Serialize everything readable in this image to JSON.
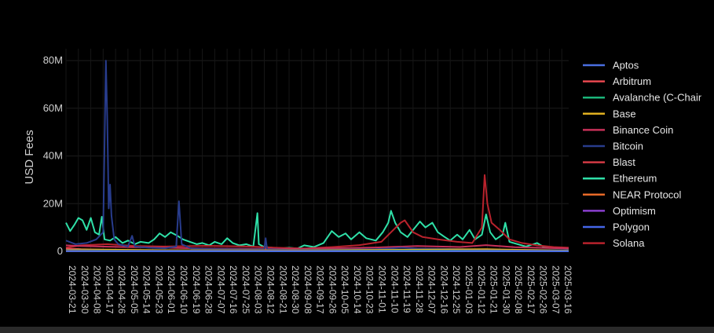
{
  "chart_data": {
    "type": "line",
    "title": "",
    "xlabel": "",
    "ylabel": "USD Fees",
    "ylim": [
      0,
      85000000
    ],
    "yticks": [
      {
        "value": 0,
        "label": "0"
      },
      {
        "value": 20000000,
        "label": "20M"
      },
      {
        "value": 40000000,
        "label": "40M"
      },
      {
        "value": 60000000,
        "label": "60M"
      },
      {
        "value": 80000000,
        "label": "80M"
      }
    ],
    "x_start": "2024-03-21",
    "x_end": "2025-03-21",
    "xtick_labels": [
      "2024-03-21",
      "2024-03-30",
      "2024-04-08",
      "2024-04-17",
      "2024-04-26",
      "2024-05-05",
      "2024-05-14",
      "2024-05-23",
      "2024-06-01",
      "2024-06-10",
      "2024-06-19",
      "2024-06-28",
      "2024-07-07",
      "2024-07-16",
      "2024-07-25",
      "2024-08-03",
      "2024-08-12",
      "2024-08-21",
      "2024-08-30",
      "2024-09-08",
      "2024-09-17",
      "2024-09-26",
      "2024-10-05",
      "2024-10-14",
      "2024-10-23",
      "2024-11-01",
      "2024-11-10",
      "2024-11-19",
      "2024-11-28",
      "2024-12-07",
      "2024-12-16",
      "2024-12-25",
      "2025-01-03",
      "2025-01-12",
      "2025-01-21",
      "2025-01-30",
      "2025-02-08",
      "2025-02-17",
      "2025-02-26",
      "2025-03-07",
      "2025-03-16"
    ],
    "grid": true,
    "legend_position": "right",
    "series": [
      {
        "name": "Aptos",
        "color": "#4a6ee0",
        "points": [
          [
            "2024-03-21",
            20000
          ],
          [
            "2024-06-01",
            15000
          ],
          [
            "2024-09-01",
            12000
          ],
          [
            "2024-12-01",
            18000
          ],
          [
            "2025-03-21",
            10000
          ]
        ]
      },
      {
        "name": "Arbitrum",
        "color": "#e8474f",
        "points": [
          [
            "2024-03-21",
            1200000
          ],
          [
            "2024-04-01",
            900000
          ],
          [
            "2024-05-01",
            500000
          ],
          [
            "2024-07-01",
            300000
          ],
          [
            "2024-10-01",
            250000
          ],
          [
            "2024-12-01",
            400000
          ],
          [
            "2025-01-20",
            600000
          ],
          [
            "2025-03-21",
            200000
          ]
        ]
      },
      {
        "name": "Avalanche (C-Chain)",
        "color": "#1bb57a",
        "points": [
          [
            "2024-03-21",
            400000
          ],
          [
            "2024-06-01",
            200000
          ],
          [
            "2024-09-01",
            150000
          ],
          [
            "2024-12-01",
            300000
          ],
          [
            "2025-03-21",
            100000
          ]
        ]
      },
      {
        "name": "Base",
        "color": "#e0b020",
        "points": [
          [
            "2024-03-21",
            600000
          ],
          [
            "2024-04-01",
            800000
          ],
          [
            "2024-06-01",
            500000
          ],
          [
            "2024-09-01",
            400000
          ],
          [
            "2024-12-01",
            700000
          ],
          [
            "2025-01-20",
            900000
          ],
          [
            "2025-03-21",
            300000
          ]
        ]
      },
      {
        "name": "Binance Coin",
        "color": "#c73058",
        "points": [
          [
            "2024-03-21",
            2500000
          ],
          [
            "2024-04-01",
            2200000
          ],
          [
            "2024-05-01",
            1800000
          ],
          [
            "2024-06-01",
            1500000
          ],
          [
            "2024-07-01",
            1200000
          ],
          [
            "2024-08-01",
            1100000
          ],
          [
            "2024-09-01",
            1000000
          ],
          [
            "2024-10-01",
            1300000
          ],
          [
            "2024-11-01",
            1600000
          ],
          [
            "2024-12-01",
            2200000
          ],
          [
            "2025-01-01",
            1800000
          ],
          [
            "2025-01-20",
            2600000
          ],
          [
            "2025-02-10",
            1700000
          ],
          [
            "2025-03-21",
            1200000
          ]
        ]
      },
      {
        "name": "Bitcoin",
        "color": "#283c8c",
        "points": [
          [
            "2024-03-21",
            4500000
          ],
          [
            "2024-03-28",
            3000000
          ],
          [
            "2024-04-05",
            3500000
          ],
          [
            "2024-04-12",
            5000000
          ],
          [
            "2024-04-17",
            8000000
          ],
          [
            "2024-04-19",
            80000000
          ],
          [
            "2024-04-20",
            55000000
          ],
          [
            "2024-04-21",
            18000000
          ],
          [
            "2024-04-22",
            28000000
          ],
          [
            "2024-04-23",
            15000000
          ],
          [
            "2024-04-25",
            5000000
          ],
          [
            "2024-04-28",
            3000000
          ],
          [
            "2024-05-05",
            2000000
          ],
          [
            "2024-05-08",
            6500000
          ],
          [
            "2024-05-10",
            2000000
          ],
          [
            "2024-05-20",
            1500000
          ],
          [
            "2024-06-01",
            1300000
          ],
          [
            "2024-06-09",
            2000000
          ],
          [
            "2024-06-11",
            21000000
          ],
          [
            "2024-06-13",
            3000000
          ],
          [
            "2024-06-20",
            1200000
          ],
          [
            "2024-07-01",
            1000000
          ],
          [
            "2024-07-15",
            900000
          ],
          [
            "2024-08-01",
            800000
          ],
          [
            "2024-08-12",
            900000
          ],
          [
            "2024-08-13",
            5500000
          ],
          [
            "2024-08-14",
            900000
          ],
          [
            "2024-09-01",
            600000
          ],
          [
            "2024-10-01",
            700000
          ],
          [
            "2024-11-01",
            900000
          ],
          [
            "2024-11-20",
            1500000
          ],
          [
            "2024-12-01",
            1200000
          ],
          [
            "2025-01-01",
            900000
          ],
          [
            "2025-02-01",
            700000
          ],
          [
            "2025-03-21",
            500000
          ]
        ]
      },
      {
        "name": "Blast",
        "color": "#d23a44",
        "points": [
          [
            "2024-03-21",
            200000
          ],
          [
            "2024-06-01",
            100000
          ],
          [
            "2024-09-01",
            50000
          ],
          [
            "2025-03-21",
            30000
          ]
        ]
      },
      {
        "name": "Ethereum",
        "color": "#2fe0a8",
        "points": [
          [
            "2024-03-21",
            12000000
          ],
          [
            "2024-03-24",
            8500000
          ],
          [
            "2024-03-27",
            11000000
          ],
          [
            "2024-03-30",
            14000000
          ],
          [
            "2024-04-02",
            13000000
          ],
          [
            "2024-04-05",
            9000000
          ],
          [
            "2024-04-08",
            14000000
          ],
          [
            "2024-04-11",
            8000000
          ],
          [
            "2024-04-14",
            7000000
          ],
          [
            "2024-04-16",
            14500000
          ],
          [
            "2024-04-18",
            5000000
          ],
          [
            "2024-04-22",
            4500000
          ],
          [
            "2024-04-26",
            6000000
          ],
          [
            "2024-05-01",
            3500000
          ],
          [
            "2024-05-05",
            4500000
          ],
          [
            "2024-05-10",
            3000000
          ],
          [
            "2024-05-14",
            4000000
          ],
          [
            "2024-05-20",
            3500000
          ],
          [
            "2024-05-24",
            5000000
          ],
          [
            "2024-05-28",
            7500000
          ],
          [
            "2024-06-01",
            6000000
          ],
          [
            "2024-06-05",
            8000000
          ],
          [
            "2024-06-10",
            6500000
          ],
          [
            "2024-06-14",
            5000000
          ],
          [
            "2024-06-19",
            4000000
          ],
          [
            "2024-06-24",
            3000000
          ],
          [
            "2024-06-28",
            3500000
          ],
          [
            "2024-07-03",
            2500000
          ],
          [
            "2024-07-07",
            4000000
          ],
          [
            "2024-07-12",
            3000000
          ],
          [
            "2024-07-16",
            5500000
          ],
          [
            "2024-07-20",
            3500000
          ],
          [
            "2024-07-25",
            2500000
          ],
          [
            "2024-07-30",
            3000000
          ],
          [
            "2024-08-04",
            2000000
          ],
          [
            "2024-08-07",
            16000000
          ],
          [
            "2024-08-08",
            3000000
          ],
          [
            "2024-08-12",
            1800000
          ],
          [
            "2024-08-18",
            1500000
          ],
          [
            "2024-08-25",
            1300000
          ],
          [
            "2024-08-30",
            1500000
          ],
          [
            "2024-09-05",
            1200000
          ],
          [
            "2024-09-10",
            2500000
          ],
          [
            "2024-09-17",
            1800000
          ],
          [
            "2024-09-24",
            3500000
          ],
          [
            "2024-09-30",
            8500000
          ],
          [
            "2024-10-05",
            6000000
          ],
          [
            "2024-10-10",
            7500000
          ],
          [
            "2024-10-14",
            5000000
          ],
          [
            "2024-10-20",
            8000000
          ],
          [
            "2024-10-25",
            5500000
          ],
          [
            "2024-11-01",
            4500000
          ],
          [
            "2024-11-06",
            8000000
          ],
          [
            "2024-11-10",
            12000000
          ],
          [
            "2024-11-12",
            17000000
          ],
          [
            "2024-11-15",
            12000000
          ],
          [
            "2024-11-19",
            8000000
          ],
          [
            "2024-11-24",
            6000000
          ],
          [
            "2024-11-28",
            9000000
          ],
          [
            "2024-12-03",
            12500000
          ],
          [
            "2024-12-07",
            10000000
          ],
          [
            "2024-12-12",
            12000000
          ],
          [
            "2024-12-16",
            8000000
          ],
          [
            "2024-12-21",
            6000000
          ],
          [
            "2024-12-25",
            4500000
          ],
          [
            "2024-12-30",
            7000000
          ],
          [
            "2025-01-03",
            5000000
          ],
          [
            "2025-01-08",
            9000000
          ],
          [
            "2025-01-12",
            5000000
          ],
          [
            "2025-01-17",
            7000000
          ],
          [
            "2025-01-20",
            15500000
          ],
          [
            "2025-01-23",
            8000000
          ],
          [
            "2025-01-27",
            5000000
          ],
          [
            "2025-02-01",
            7000000
          ],
          [
            "2025-02-03",
            12000000
          ],
          [
            "2025-02-06",
            4000000
          ],
          [
            "2025-02-12",
            3000000
          ],
          [
            "2025-02-18",
            2000000
          ],
          [
            "2025-02-26",
            3500000
          ],
          [
            "2025-03-03",
            1800000
          ],
          [
            "2025-03-10",
            1500000
          ],
          [
            "2025-03-21",
            1200000
          ]
        ]
      },
      {
        "name": "NEAR Protocol",
        "color": "#e86a28",
        "points": [
          [
            "2024-03-21",
            30000
          ],
          [
            "2024-09-01",
            20000
          ],
          [
            "2025-03-21",
            15000
          ]
        ]
      },
      {
        "name": "Optimism",
        "color": "#8a3fcf",
        "points": [
          [
            "2024-03-21",
            500000
          ],
          [
            "2024-05-01",
            300000
          ],
          [
            "2024-08-01",
            200000
          ],
          [
            "2024-11-01",
            250000
          ],
          [
            "2025-01-20",
            400000
          ],
          [
            "2025-03-21",
            150000
          ]
        ]
      },
      {
        "name": "Polygon",
        "color": "#4466e8",
        "points": [
          [
            "2024-03-21",
            300000
          ],
          [
            "2024-06-01",
            250000
          ],
          [
            "2024-09-01",
            200000
          ],
          [
            "2024-12-01",
            300000
          ],
          [
            "2025-03-21",
            150000
          ]
        ]
      },
      {
        "name": "Solana",
        "color": "#b8222c",
        "points": [
          [
            "2024-03-21",
            1500000
          ],
          [
            "2024-04-01",
            2500000
          ],
          [
            "2024-04-20",
            3000000
          ],
          [
            "2024-05-10",
            2200000
          ],
          [
            "2024-06-01",
            2000000
          ],
          [
            "2024-07-01",
            2300000
          ],
          [
            "2024-08-01",
            2000000
          ],
          [
            "2024-08-20",
            1500000
          ],
          [
            "2024-09-10",
            1200000
          ],
          [
            "2024-10-01",
            1800000
          ],
          [
            "2024-10-20",
            2600000
          ],
          [
            "2024-11-05",
            4000000
          ],
          [
            "2024-11-12",
            8000000
          ],
          [
            "2024-11-19",
            12000000
          ],
          [
            "2024-11-22",
            13000000
          ],
          [
            "2024-11-28",
            8000000
          ],
          [
            "2024-12-05",
            6000000
          ],
          [
            "2024-12-16",
            5000000
          ],
          [
            "2024-12-30",
            4000000
          ],
          [
            "2025-01-10",
            3500000
          ],
          [
            "2025-01-17",
            10000000
          ],
          [
            "2025-01-19",
            32000000
          ],
          [
            "2025-01-21",
            20000000
          ],
          [
            "2025-01-24",
            12000000
          ],
          [
            "2025-01-30",
            9000000
          ],
          [
            "2025-02-06",
            5000000
          ],
          [
            "2025-02-15",
            3500000
          ],
          [
            "2025-02-26",
            2500000
          ],
          [
            "2025-03-10",
            1800000
          ],
          [
            "2025-03-21",
            1500000
          ]
        ]
      }
    ]
  }
}
